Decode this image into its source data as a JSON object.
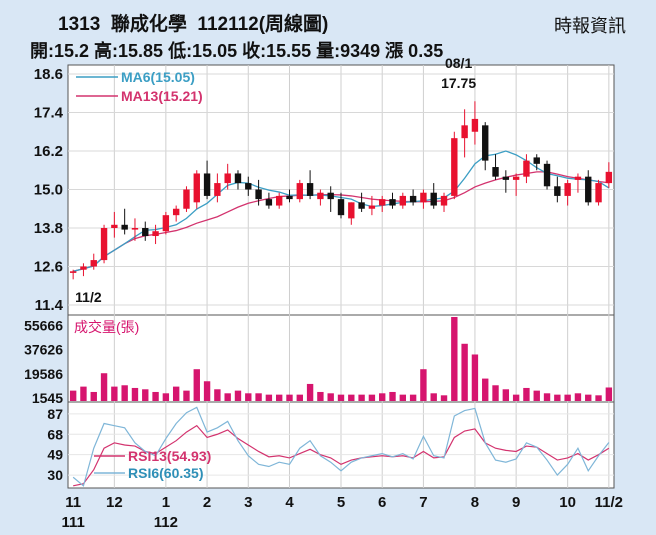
{
  "header": {
    "code": "1313",
    "name": "聯成化學",
    "period": "112112(周線圖)",
    "source": "時報資訊",
    "quote_line": "開:15.2 高:15.85 低:15.05 收:15.55 量:9349 漲 0.35"
  },
  "colors": {
    "up": "#e8112f",
    "down": "#111111",
    "ma6": "#3b9ec4",
    "ma13": "#d3336e",
    "volume": "#d6156e",
    "rsi13": "#d3336e",
    "rsi6": "#7fb6d8"
  },
  "chart_data": [
    {
      "type": "candlestick",
      "title": "1313 聯成化學 112112(周線圖)",
      "y_ticks": [
        18.6,
        17.4,
        16.2,
        15.0,
        13.8,
        12.6,
        11.4
      ],
      "ylim": [
        11.4,
        18.6
      ],
      "x_ticks": [
        {
          "label": "11",
          "sub": "111",
          "week": 0
        },
        {
          "label": "12",
          "sub": "",
          "week": 4
        },
        {
          "label": "1",
          "sub": "112",
          "week": 9
        },
        {
          "label": "2",
          "sub": "",
          "week": 13
        },
        {
          "label": "3",
          "sub": "",
          "week": 17
        },
        {
          "label": "4",
          "sub": "",
          "week": 21
        },
        {
          "label": "5",
          "sub": "",
          "week": 26
        },
        {
          "label": "6",
          "sub": "",
          "week": 30
        },
        {
          "label": "7",
          "sub": "",
          "week": 34
        },
        {
          "label": "8",
          "sub": "",
          "week": 39
        },
        {
          "label": "9",
          "sub": "",
          "week": 43
        },
        {
          "label": "10",
          "sub": "",
          "week": 48
        },
        {
          "label": "11/2",
          "sub": "",
          "week": 52
        }
      ],
      "annotations": [
        {
          "text": "11/2",
          "value": 12.2,
          "week": 0
        },
        {
          "text": "08/1",
          "value": 17.75,
          "week": 38
        },
        {
          "text": "17.75",
          "value": 17.75,
          "week": 38
        }
      ],
      "series_legend": [
        {
          "name": "MA6(15.05)",
          "color": "#3b9ec4"
        },
        {
          "name": "MA13(15.21)",
          "color": "#d3336e"
        }
      ],
      "ohlc": [
        [
          12.4,
          12.5,
          12.2,
          12.45
        ],
        [
          12.5,
          12.7,
          12.3,
          12.6
        ],
        [
          12.6,
          13.0,
          12.5,
          12.8
        ],
        [
          12.8,
          13.9,
          12.7,
          13.8
        ],
        [
          13.8,
          14.3,
          13.5,
          13.9
        ],
        [
          13.9,
          14.4,
          13.6,
          13.75
        ],
        [
          13.75,
          14.1,
          13.4,
          13.8
        ],
        [
          13.8,
          14.0,
          13.4,
          13.55
        ],
        [
          13.55,
          13.9,
          13.3,
          13.7
        ],
        [
          13.7,
          14.3,
          13.6,
          14.2
        ],
        [
          14.2,
          14.5,
          14.0,
          14.4
        ],
        [
          14.4,
          15.1,
          14.3,
          15.0
        ],
        [
          14.6,
          15.6,
          14.4,
          15.5
        ],
        [
          15.5,
          15.9,
          14.7,
          14.8
        ],
        [
          14.8,
          15.5,
          14.6,
          15.2
        ],
        [
          15.2,
          15.8,
          15.0,
          15.5
        ],
        [
          15.5,
          15.6,
          15.0,
          15.2
        ],
        [
          15.2,
          15.4,
          14.8,
          15.0
        ],
        [
          15.0,
          15.3,
          14.5,
          14.7
        ],
        [
          14.7,
          14.9,
          14.4,
          14.5
        ],
        [
          14.5,
          14.9,
          14.4,
          14.8
        ],
        [
          14.8,
          15.0,
          14.6,
          14.7
        ],
        [
          14.7,
          15.3,
          14.6,
          15.2
        ],
        [
          15.2,
          15.6,
          14.7,
          14.8
        ],
        [
          14.7,
          15.0,
          14.5,
          14.9
        ],
        [
          14.9,
          15.1,
          14.3,
          14.7
        ],
        [
          14.7,
          14.9,
          14.1,
          14.2
        ],
        [
          14.1,
          14.6,
          13.9,
          14.6
        ],
        [
          14.6,
          14.9,
          14.3,
          14.4
        ],
        [
          14.4,
          14.8,
          14.2,
          14.5
        ],
        [
          14.5,
          14.8,
          14.3,
          14.7
        ],
        [
          14.7,
          14.9,
          14.4,
          14.5
        ],
        [
          14.5,
          14.9,
          14.4,
          14.8
        ],
        [
          14.8,
          15.0,
          14.5,
          14.6
        ],
        [
          14.6,
          15.0,
          14.4,
          14.9
        ],
        [
          14.9,
          15.2,
          14.4,
          14.5
        ],
        [
          14.5,
          14.9,
          14.3,
          14.8
        ],
        [
          14.8,
          16.8,
          14.7,
          16.6
        ],
        [
          16.6,
          17.5,
          16.0,
          17.0
        ],
        [
          16.8,
          17.75,
          16.4,
          17.2
        ],
        [
          17.0,
          17.1,
          15.6,
          15.9
        ],
        [
          15.7,
          16.1,
          15.3,
          15.4
        ],
        [
          15.4,
          15.6,
          14.9,
          15.3
        ],
        [
          15.3,
          15.5,
          14.8,
          15.4
        ],
        [
          15.4,
          16.1,
          15.2,
          15.9
        ],
        [
          16.0,
          16.1,
          15.6,
          15.8
        ],
        [
          15.8,
          15.9,
          15.0,
          15.1
        ],
        [
          15.1,
          15.4,
          14.6,
          14.8
        ],
        [
          14.8,
          15.3,
          14.5,
          15.2
        ],
        [
          15.3,
          15.5,
          14.9,
          15.4
        ],
        [
          15.4,
          15.6,
          14.5,
          14.6
        ],
        [
          14.6,
          15.3,
          14.5,
          15.2
        ],
        [
          15.2,
          15.85,
          15.05,
          15.55
        ]
      ],
      "ma6": [
        12.45,
        12.53,
        12.62,
        12.91,
        13.11,
        13.31,
        13.53,
        13.73,
        13.75,
        13.82,
        13.9,
        14.1,
        14.39,
        14.57,
        14.85,
        15.13,
        15.22,
        15.2,
        15.07,
        14.98,
        14.92,
        14.82,
        14.83,
        14.82,
        14.83,
        14.8,
        14.75,
        14.7,
        14.55,
        14.47,
        14.5,
        14.55,
        14.6,
        14.62,
        14.65,
        14.7,
        14.74,
        14.95,
        15.35,
        15.8,
        16.05,
        16.1,
        16.2,
        16.08,
        15.9,
        15.68,
        15.5,
        15.43,
        15.35,
        15.32,
        15.3,
        15.25,
        15.05
      ],
      "ma13": [
        12.45,
        12.53,
        12.62,
        12.91,
        13.11,
        13.31,
        13.47,
        13.56,
        13.6,
        13.66,
        13.72,
        13.82,
        13.95,
        14.05,
        14.15,
        14.3,
        14.45,
        14.57,
        14.65,
        14.72,
        14.78,
        14.8,
        14.82,
        14.82,
        14.84,
        14.84,
        14.83,
        14.8,
        14.75,
        14.7,
        14.67,
        14.65,
        14.63,
        14.62,
        14.62,
        14.63,
        14.65,
        14.75,
        14.9,
        15.08,
        15.2,
        15.3,
        15.38,
        15.45,
        15.5,
        15.55,
        15.55,
        15.48,
        15.4,
        15.35,
        15.3,
        15.25,
        15.21
      ]
    },
    {
      "type": "bar",
      "title": "成交量(張)",
      "y_ticks": [
        55666,
        37626,
        19586,
        1545
      ],
      "ylim": [
        0,
        62000
      ],
      "values": [
        7000,
        10000,
        6000,
        20000,
        10000,
        11000,
        9000,
        8000,
        6000,
        5000,
        10000,
        7000,
        23000,
        14000,
        8000,
        5000,
        7000,
        5000,
        5000,
        4000,
        4000,
        4000,
        4000,
        12000,
        6000,
        5000,
        4000,
        4000,
        4000,
        4000,
        5000,
        6000,
        4000,
        4000,
        23000,
        5000,
        3500,
        65000,
        42000,
        34000,
        16000,
        11000,
        8000,
        4000,
        9000,
        7000,
        5000,
        4000,
        4000,
        5000,
        4000,
        3500,
        9349
      ]
    },
    {
      "type": "line",
      "title": "",
      "y_ticks": [
        87,
        68,
        49,
        30
      ],
      "ylim": [
        18,
        98
      ],
      "series": [
        {
          "name": "RSI13(54.93)",
          "color": "#d3336e",
          "values": [
            20,
            22,
            35,
            55,
            60,
            58,
            57,
            52,
            50,
            56,
            62,
            70,
            76,
            65,
            68,
            72,
            64,
            58,
            52,
            47,
            48,
            46,
            50,
            54,
            49,
            46,
            40,
            44,
            46,
            47,
            48,
            47,
            48,
            46,
            52,
            46,
            47,
            65,
            71,
            73,
            60,
            55,
            53,
            52,
            57,
            56,
            50,
            44,
            46,
            50,
            44,
            49,
            54.93
          ]
        },
        {
          "name": "RSI6(60.35)",
          "color": "#7fb6d8",
          "values": [
            28,
            20,
            55,
            78,
            76,
            74,
            60,
            52,
            48,
            64,
            78,
            88,
            93,
            70,
            74,
            80,
            62,
            48,
            40,
            38,
            42,
            40,
            55,
            62,
            48,
            42,
            34,
            42,
            46,
            48,
            50,
            47,
            50,
            45,
            66,
            48,
            46,
            85,
            90,
            92,
            60,
            44,
            42,
            45,
            60,
            56,
            44,
            30,
            40,
            55,
            34,
            48,
            60.35
          ]
        }
      ]
    }
  ]
}
